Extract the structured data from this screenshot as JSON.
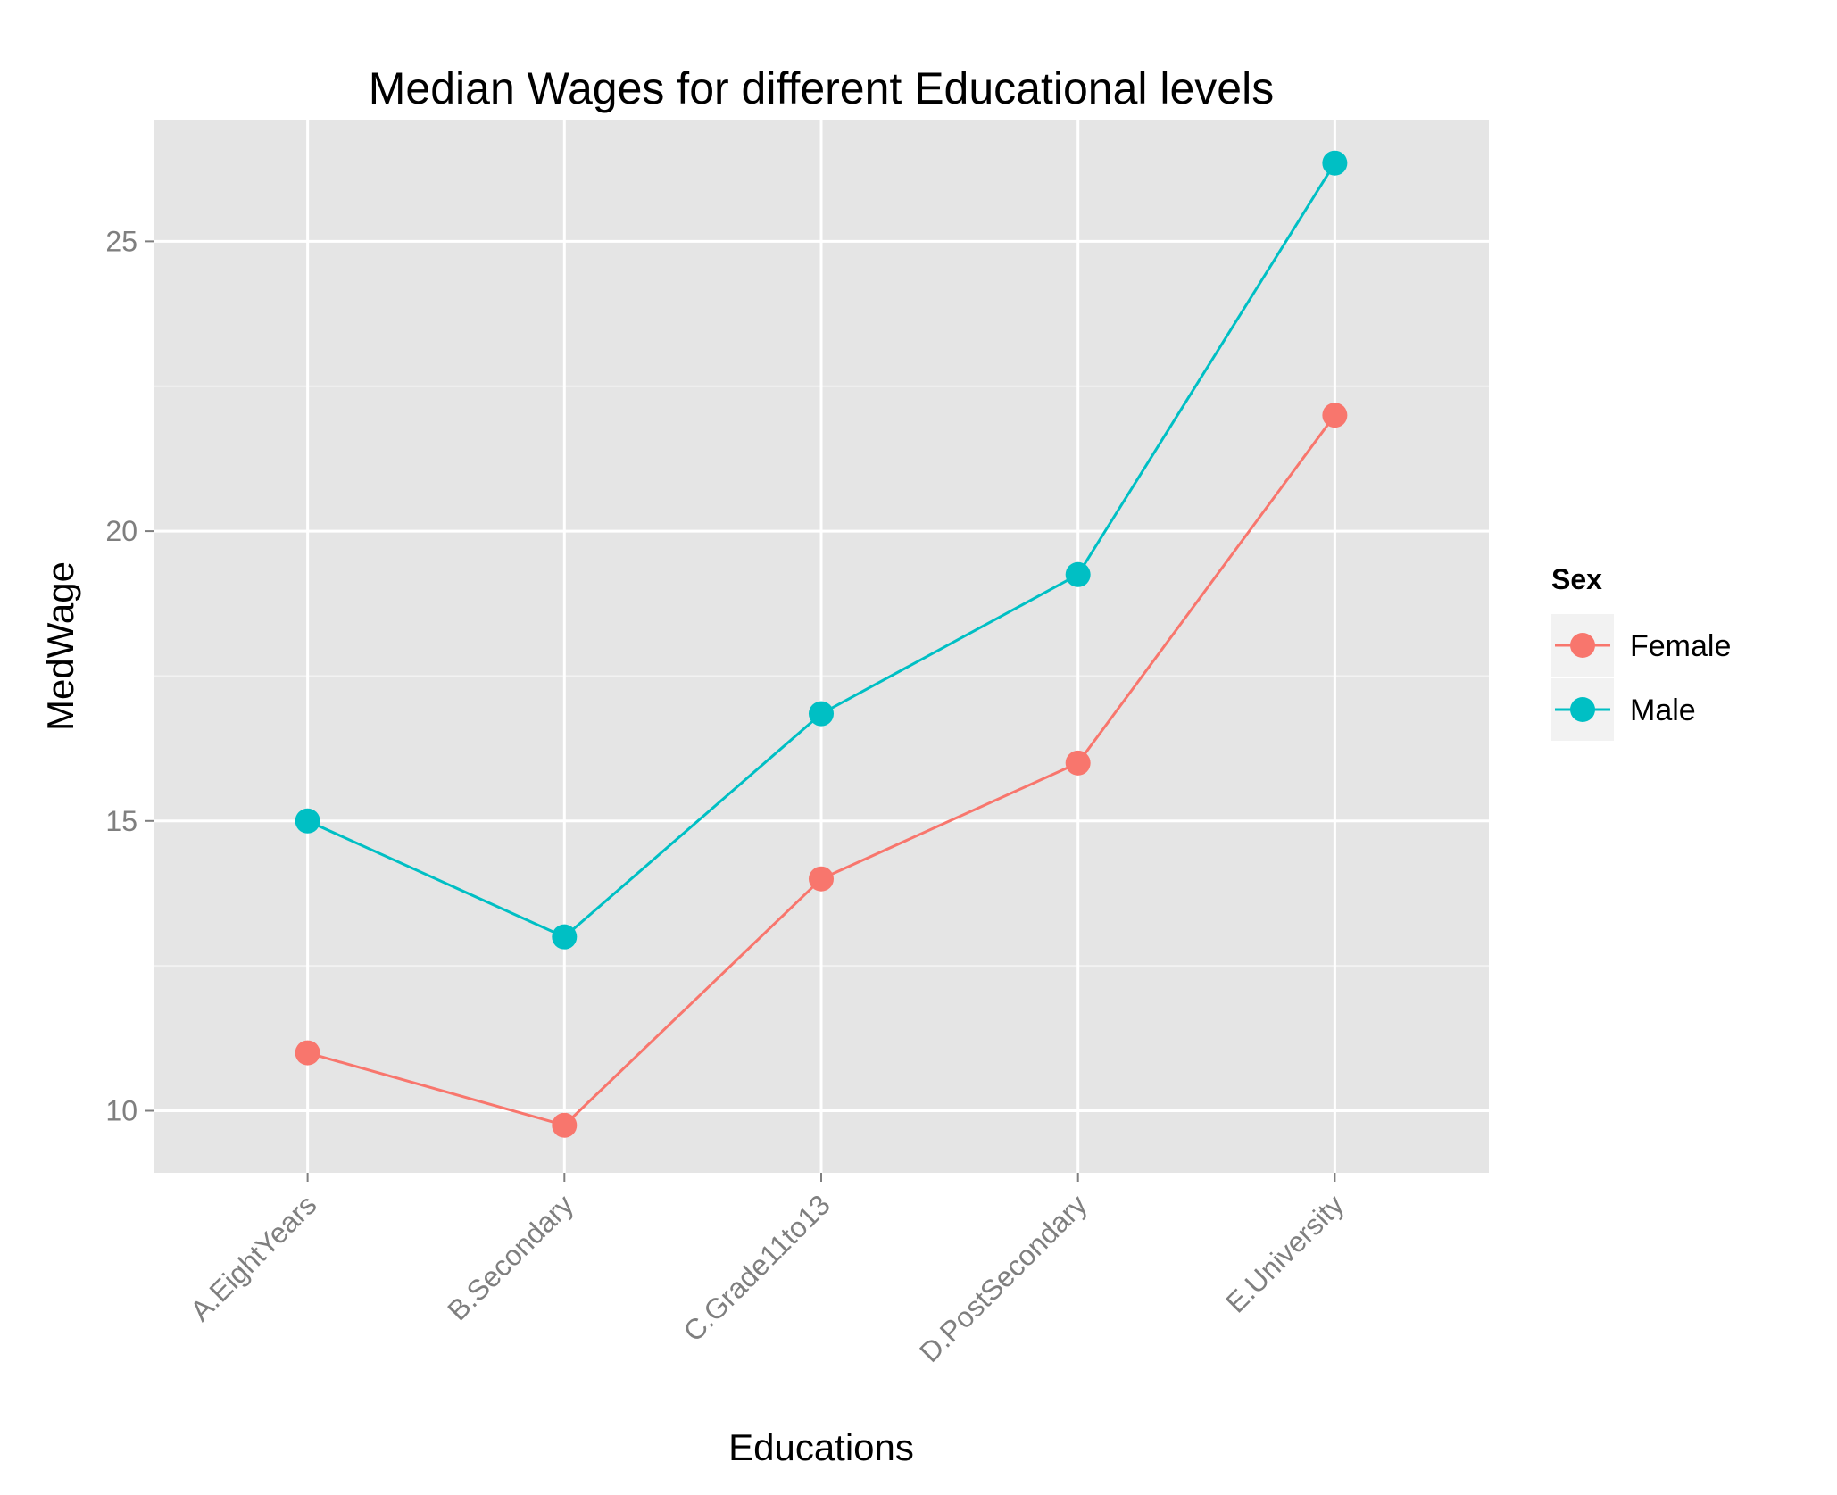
{
  "chart_data": {
    "type": "line",
    "title": "Median Wages for different Educational levels",
    "xlabel": "Educations",
    "ylabel": "MedWage",
    "categories": [
      "A.EightYears",
      "B.Secondary",
      "C.Grade11to13",
      "D.PostSecondary",
      "E.University"
    ],
    "series": [
      {
        "name": "Female",
        "color": "#f8766d",
        "values": [
          11.0,
          9.75,
          14.0,
          16.0,
          22.0
        ]
      },
      {
        "name": "Male",
        "color": "#00bfc4",
        "values": [
          15.0,
          13.0,
          16.85,
          19.25,
          26.35
        ]
      }
    ],
    "yticks": [
      10,
      15,
      20,
      25
    ],
    "ylim": [
      8.93,
      27.1
    ],
    "grid": true,
    "panel_background": "#e5e5e5",
    "legend": {
      "title": "Sex",
      "position": "right"
    }
  }
}
